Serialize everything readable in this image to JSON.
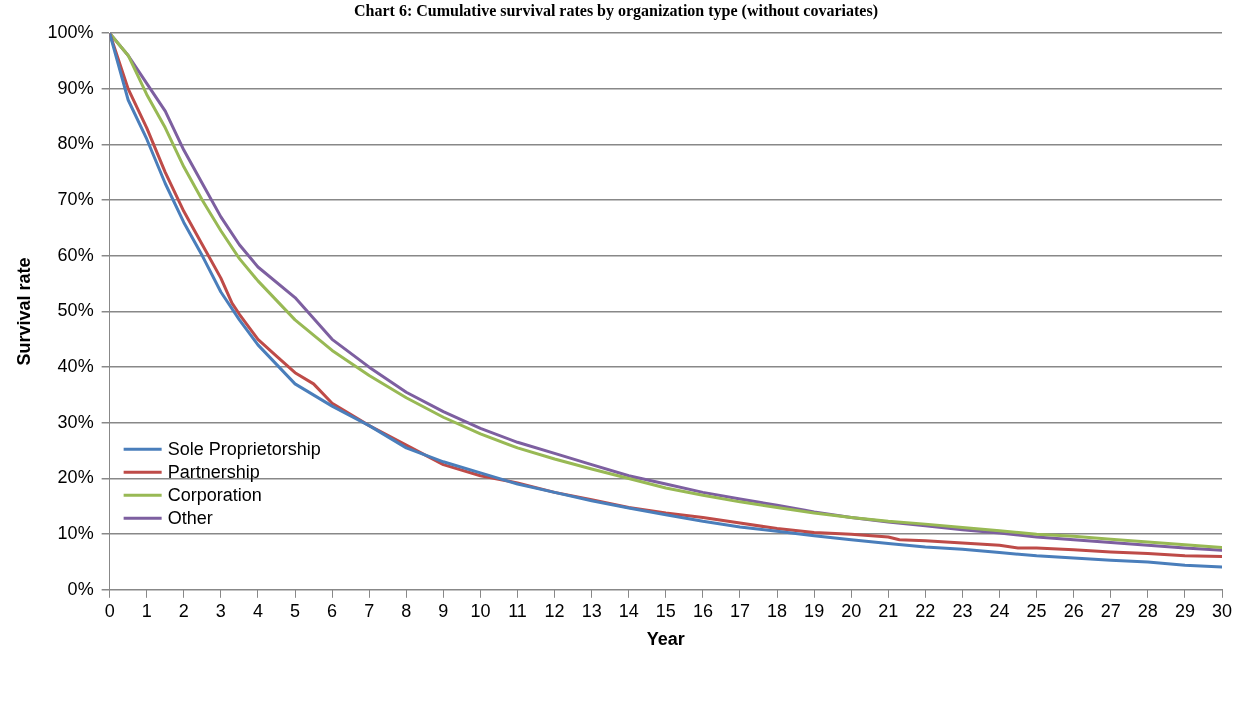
{
  "chart_data": {
    "type": "line",
    "title": "Chart 6: Cumulative survival rates by organization type (without covariates)",
    "xlabel": "Year",
    "ylabel": "Survival rate",
    "xlim": [
      0,
      30
    ],
    "xticks": [
      0,
      1,
      2,
      3,
      4,
      5,
      6,
      7,
      8,
      9,
      10,
      11,
      12,
      13,
      14,
      15,
      16,
      17,
      18,
      19,
      20,
      21,
      22,
      23,
      24,
      25,
      26,
      27,
      28,
      29,
      30
    ],
    "ylim": [
      0,
      100
    ],
    "yticks": [
      {
        "value": 0,
        "label": "0%"
      },
      {
        "value": 10,
        "label": "10%"
      },
      {
        "value": 20,
        "label": "20%"
      },
      {
        "value": 30,
        "label": "30%"
      },
      {
        "value": 40,
        "label": "40%"
      },
      {
        "value": 50,
        "label": "50%"
      },
      {
        "value": 60,
        "label": "60%"
      },
      {
        "value": 70,
        "label": "70%"
      },
      {
        "value": 80,
        "label": "80%"
      },
      {
        "value": 90,
        "label": "90%"
      },
      {
        "value": 100,
        "label": "100%"
      }
    ],
    "grid": "y",
    "legend": "bottom left",
    "marker": "none",
    "line_style": "solid",
    "series": [
      {
        "name": "Sole Proprietorship",
        "color": "#4a7ebb",
        "x": [
          0,
          0.5,
          1,
          1.5,
          2,
          2.5,
          3,
          3.5,
          4,
          5,
          6,
          7,
          8,
          9,
          10,
          11,
          12,
          13,
          14,
          15,
          16,
          17,
          18,
          19,
          20,
          21,
          22,
          23,
          24,
          25,
          26,
          27,
          28,
          29,
          30
        ],
        "values": [
          100,
          88,
          81,
          73,
          66,
          60,
          53.5,
          48.5,
          44,
          37,
          33,
          29.5,
          25.5,
          23,
          21,
          19,
          17.5,
          16,
          14.7,
          13.5,
          12.3,
          11.3,
          10.5,
          9.7,
          9,
          8.3,
          7.7,
          7.3,
          6.7,
          6.1,
          5.7,
          5.3,
          5,
          4.4,
          4.1
        ]
      },
      {
        "name": "Partnership",
        "color": "#be4b48",
        "x": [
          0,
          0.5,
          1,
          1.5,
          2,
          2.5,
          3,
          3.3,
          3.5,
          4,
          4.5,
          5,
          5.5,
          6,
          7,
          8,
          9,
          10,
          11,
          12,
          13,
          14,
          15,
          16,
          17,
          18,
          19,
          20,
          21,
          21.3,
          22,
          23,
          24,
          24.5,
          25,
          26,
          27,
          28,
          29,
          30
        ],
        "values": [
          100,
          90,
          83,
          75,
          68,
          62,
          56,
          51.5,
          49.5,
          45,
          42,
          39,
          37,
          33.5,
          29.5,
          26,
          22.5,
          20.5,
          19.2,
          17.5,
          16.2,
          14.8,
          13.8,
          13,
          12,
          11,
          10.3,
          10,
          9.5,
          9,
          8.8,
          8.4,
          8,
          7.5,
          7.5,
          7.2,
          6.8,
          6.5,
          6.1,
          6
        ]
      },
      {
        "name": "Corporation",
        "color": "#98b954",
        "x": [
          0,
          0.5,
          1,
          1.5,
          2,
          2.5,
          3,
          3.5,
          4,
          5,
          6,
          7,
          8,
          9,
          10,
          11,
          12,
          13,
          14,
          15,
          16,
          17,
          18,
          19,
          20,
          21,
          22,
          23,
          24,
          25,
          26,
          27,
          28,
          29,
          30
        ],
        "values": [
          100,
          96,
          89,
          83,
          76,
          70,
          64.5,
          59.5,
          55.5,
          48.5,
          43,
          38.5,
          34.5,
          31,
          28,
          25.5,
          23.5,
          21.7,
          20,
          18.3,
          17,
          15.8,
          14.8,
          13.8,
          13,
          12.3,
          11.8,
          11.2,
          10.6,
          10,
          9.6,
          9.1,
          8.6,
          8.1,
          7.6
        ]
      },
      {
        "name": "Other",
        "color": "#7d5fa0",
        "x": [
          0,
          0.5,
          1,
          1.5,
          2,
          2.5,
          3,
          3.5,
          4,
          5,
          6,
          7,
          8,
          9,
          10,
          11,
          12,
          13,
          14,
          15,
          16,
          17,
          18,
          19,
          20,
          21,
          22,
          23,
          24,
          25,
          26,
          27,
          28,
          29,
          30
        ],
        "values": [
          100,
          96,
          91,
          86,
          79,
          73,
          67,
          62,
          58,
          52.5,
          45,
          40,
          35.5,
          32,
          29,
          26.5,
          24.5,
          22.5,
          20.5,
          19,
          17.5,
          16.3,
          15.2,
          14,
          13,
          12.2,
          11.5,
          10.8,
          10.2,
          9.5,
          9,
          8.5,
          8,
          7.5,
          7.1
        ]
      }
    ]
  }
}
